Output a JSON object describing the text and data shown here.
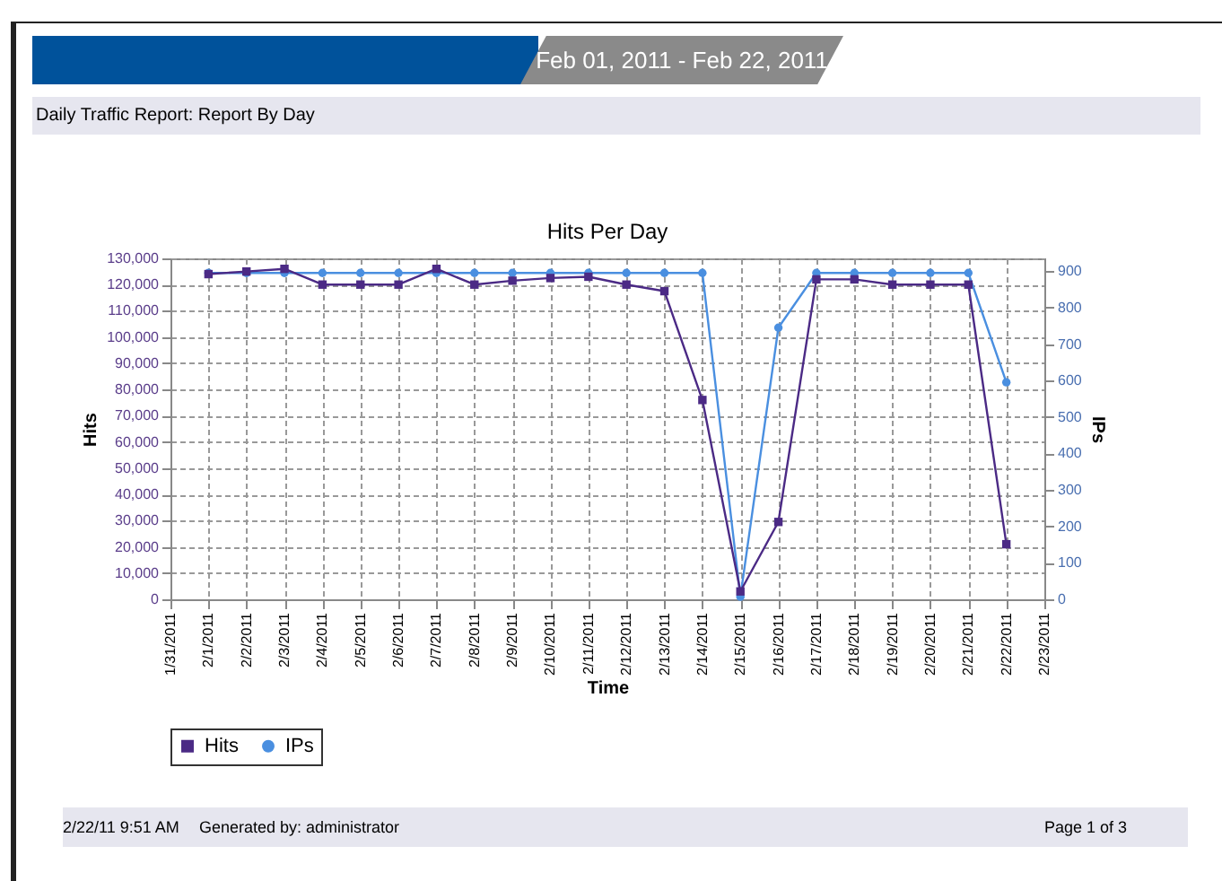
{
  "chart_data": {
    "type": "line",
    "title": "Hits Per Day",
    "subtitle": "Feb 01, 2011 - Feb 22, 2011",
    "xlabel": "Time",
    "ylabel": "Hits",
    "y2label": "IPs",
    "annotations": [
      "Daily Traffic Report: Report By Day",
      "2/22/11 9:51 AM",
      "Generated by: administrator",
      "Page 1 of 3"
    ],
    "categories": [
      "1/31/2011",
      "2/1/2011",
      "2/2/2011",
      "2/3/2011",
      "2/4/2011",
      "2/5/2011",
      "2/6/2011",
      "2/7/2011",
      "2/8/2011",
      "2/9/2011",
      "2/10/2011",
      "2/11/2011",
      "2/12/2011",
      "2/13/2011",
      "2/14/2011",
      "2/15/2011",
      "2/16/2011",
      "2/17/2011",
      "2/18/2011",
      "2/19/2011",
      "2/20/2011",
      "2/21/2011",
      "2/22/2011",
      "2/23/2011"
    ],
    "series": [
      {
        "name": "Hits",
        "color": "#4b2a85",
        "marker": "square",
        "values": [
          null,
          124000,
          125000,
          126000,
          120000,
          120000,
          120000,
          126000,
          120000,
          121500,
          122500,
          123000,
          120000,
          117500,
          76000,
          3000,
          29500,
          122000,
          122000,
          120000,
          120000,
          120000,
          21000,
          null
        ]
      },
      {
        "name": "IPs",
        "color": "#4a8fe0",
        "marker": "circle",
        "axis": "y2",
        "values": [
          null,
          895,
          895,
          895,
          895,
          895,
          895,
          895,
          895,
          895,
          895,
          895,
          895,
          895,
          895,
          7,
          745,
          895,
          895,
          895,
          895,
          895,
          595,
          null
        ]
      }
    ],
    "ylim": [
      0,
      130000
    ],
    "yticks": [
      0,
      {
        "value": 10000,
        "label": "10,000"
      },
      {
        "value": 20000,
        "label": "20,000"
      },
      {
        "value": 30000,
        "label": "30,000"
      },
      {
        "value": 40000,
        "label": "40,000"
      },
      {
        "value": 50000,
        "label": "50,000"
      },
      {
        "value": 60000,
        "label": "60,000"
      },
      {
        "value": 70000,
        "label": "70,000"
      },
      {
        "value": 80000,
        "label": "80,000"
      },
      {
        "value": 90000,
        "label": "90,000"
      },
      {
        "value": 100000,
        "label": "100,000"
      },
      {
        "value": 110000,
        "label": "110,000"
      },
      {
        "value": 120000,
        "label": "120,000"
      },
      {
        "value": 130000,
        "label": "130,000"
      }
    ],
    "y2lim": [
      0,
      935
    ],
    "y2ticks": [
      0,
      100,
      200,
      300,
      400,
      500,
      600,
      700,
      800,
      900
    ],
    "grid": true,
    "legend": "bottom",
    "line_style": "solid"
  }
}
